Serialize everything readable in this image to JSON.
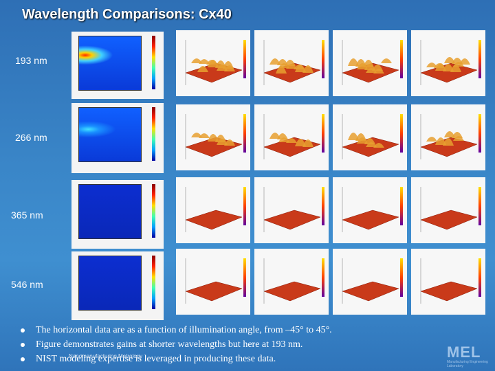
{
  "slide": {
    "title": "Wavelength Comparisons: Cx40",
    "rows": [
      {
        "label": "193 nm"
      },
      {
        "label": "266 nm"
      },
      {
        "label": "365 nm"
      },
      {
        "label": "546 nm"
      }
    ],
    "bullets": [
      "The horizontal data are as a function of illumination angle, from –45° to 45°.",
      "Figure demonstrates gains at shorter wavelengths but here at 193 nm.",
      "NIST modeling expertise is leveraged in producing these data."
    ],
    "footer": "Nanomanufacturing Metrology",
    "logo": "MEL",
    "logo_sub": "Manufacturing Engineering Laboratory"
  },
  "colors": {
    "background": "#3a86c8",
    "surface_red": "#c93a1a",
    "heat_blue": "#1030c8"
  }
}
